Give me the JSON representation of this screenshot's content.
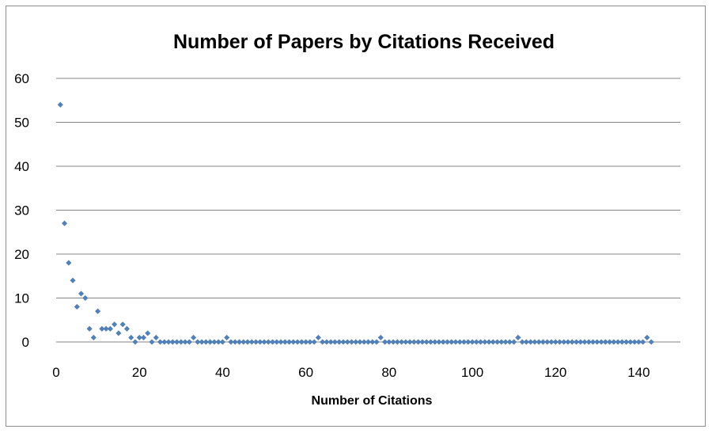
{
  "chart_data": {
    "type": "scatter",
    "title": "Number of Papers by Citations Received",
    "xlabel": "Number of Citations",
    "ylabel": "",
    "xlim": [
      0,
      150
    ],
    "ylim": [
      0,
      60
    ],
    "xticks": [
      0,
      20,
      40,
      60,
      80,
      100,
      120,
      140
    ],
    "yticks": [
      0,
      10,
      20,
      30,
      40,
      50,
      60
    ],
    "grid": "horizontal",
    "legend": "none",
    "marker_color": "#4f81bd",
    "series": [
      {
        "x": [
          1,
          2,
          3,
          4,
          5,
          6,
          7,
          8,
          9,
          10,
          11,
          12,
          13,
          14,
          15,
          16,
          17,
          18,
          19,
          20,
          21,
          22,
          23,
          24,
          25,
          26,
          27,
          28,
          29,
          30,
          31,
          32,
          33,
          34,
          35,
          36,
          37,
          38,
          39,
          40,
          41,
          42,
          43,
          44,
          45,
          46,
          47,
          48,
          49,
          50,
          51,
          52,
          53,
          54,
          55,
          56,
          57,
          58,
          59,
          60,
          61,
          62,
          63,
          64,
          65,
          66,
          67,
          68,
          69,
          70,
          71,
          72,
          73,
          74,
          75,
          76,
          77,
          78,
          79,
          80,
          81,
          82,
          83,
          84,
          85,
          86,
          87,
          88,
          89,
          90,
          91,
          92,
          93,
          94,
          95,
          96,
          97,
          98,
          99,
          100,
          101,
          102,
          103,
          104,
          105,
          106,
          107,
          108,
          109,
          110,
          111,
          112,
          113,
          114,
          115,
          116,
          117,
          118,
          119,
          120,
          121,
          122,
          123,
          124,
          125,
          126,
          127,
          128,
          129,
          130,
          131,
          132,
          133,
          134,
          135,
          136,
          137,
          138,
          139,
          140,
          141,
          142,
          143
        ],
        "y": [
          54,
          27,
          18,
          14,
          8,
          11,
          10,
          3,
          1,
          7,
          3,
          3,
          3,
          4,
          2,
          4,
          3,
          1,
          0,
          1,
          1,
          2,
          0,
          1,
          0,
          0,
          0,
          0,
          0,
          0,
          0,
          0,
          1,
          0,
          0,
          0,
          0,
          0,
          0,
          0,
          1,
          0,
          0,
          0,
          0,
          0,
          0,
          0,
          0,
          0,
          0,
          0,
          0,
          0,
          0,
          0,
          0,
          0,
          0,
          0,
          0,
          0,
          1,
          0,
          0,
          0,
          0,
          0,
          0,
          0,
          0,
          0,
          0,
          0,
          0,
          0,
          0,
          1,
          0,
          0,
          0,
          0,
          0,
          0,
          0,
          0,
          0,
          0,
          0,
          0,
          0,
          0,
          0,
          0,
          0,
          0,
          0,
          0,
          0,
          0,
          0,
          0,
          0,
          0,
          0,
          0,
          0,
          0,
          0,
          0,
          1,
          0,
          0,
          0,
          0,
          0,
          0,
          0,
          0,
          0,
          0,
          0,
          0,
          0,
          0,
          0,
          0,
          0,
          0,
          0,
          0,
          0,
          0,
          0,
          0,
          0,
          0,
          0,
          0,
          0,
          0,
          1,
          0
        ]
      }
    ]
  }
}
